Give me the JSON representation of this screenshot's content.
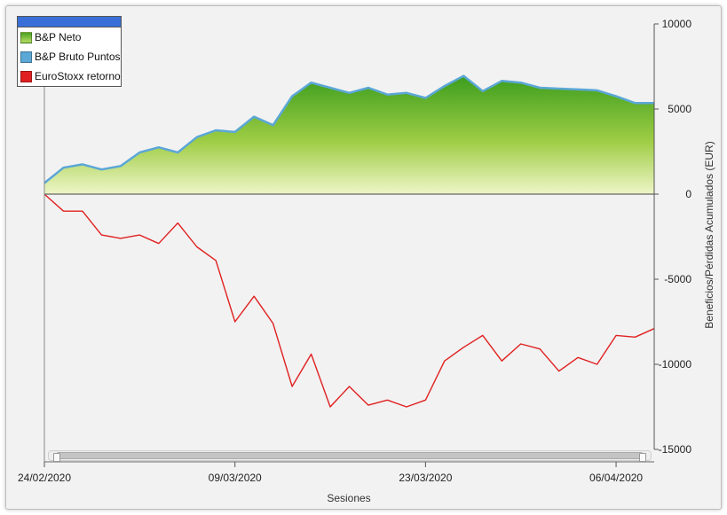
{
  "chart_data": {
    "type": "area",
    "xlabel": "Sesiones",
    "ylabel": "Beneficios/Pérdidas Acumulados (EUR)",
    "ylim": [
      -15000,
      10000
    ],
    "yticks": [
      10000,
      5000,
      0,
      -5000,
      -10000,
      -15000
    ],
    "ytick_labels": [
      "10000",
      "5000",
      "0",
      "-5000",
      "-10000",
      "-15000"
    ],
    "x_tick_labels": [
      "24/02/2020",
      "09/03/2020",
      "23/03/2020",
      "06/04/2020"
    ],
    "x_tick_index": [
      0,
      10,
      20,
      30
    ],
    "legend_position": "top-left",
    "grid": false,
    "series": [
      {
        "name": "B&P Neto",
        "style": "area",
        "color": "#5fb02a",
        "values": [
          600,
          1500,
          1700,
          1400,
          1600,
          2400,
          2700,
          2400,
          3300,
          3700,
          3600,
          4500,
          4000,
          5700,
          6500,
          6200,
          5900,
          6200,
          5800,
          5900,
          5600,
          6300,
          6900,
          6000,
          6600,
          6500,
          6200,
          6150,
          6100,
          6050,
          5700,
          5300,
          5300
        ]
      },
      {
        "name": "B&P Bruto Puntos",
        "style": "line",
        "color": "#5ba7d6",
        "values": [
          650,
          1550,
          1750,
          1450,
          1650,
          2450,
          2750,
          2450,
          3350,
          3750,
          3650,
          4550,
          4050,
          5750,
          6550,
          6250,
          5950,
          6250,
          5850,
          5950,
          5650,
          6350,
          6950,
          6050,
          6650,
          6550,
          6250,
          6200,
          6150,
          6100,
          5750,
          5350,
          5350
        ]
      },
      {
        "name": "EuroStoxx retorno",
        "style": "line",
        "color": "#e02020",
        "values": [
          0,
          -1000,
          -1000,
          -2400,
          -2600,
          -2400,
          -2900,
          -1700,
          -3100,
          -3900,
          -7500,
          -6000,
          -7600,
          -11300,
          -9400,
          -12500,
          -11300,
          -12400,
          -12100,
          -12500,
          -12100,
          -9800,
          -9000,
          -8300,
          -9800,
          -8800,
          -9100,
          -10400,
          -9600,
          -10000,
          -8300,
          -8400,
          -7900
        ]
      }
    ]
  }
}
